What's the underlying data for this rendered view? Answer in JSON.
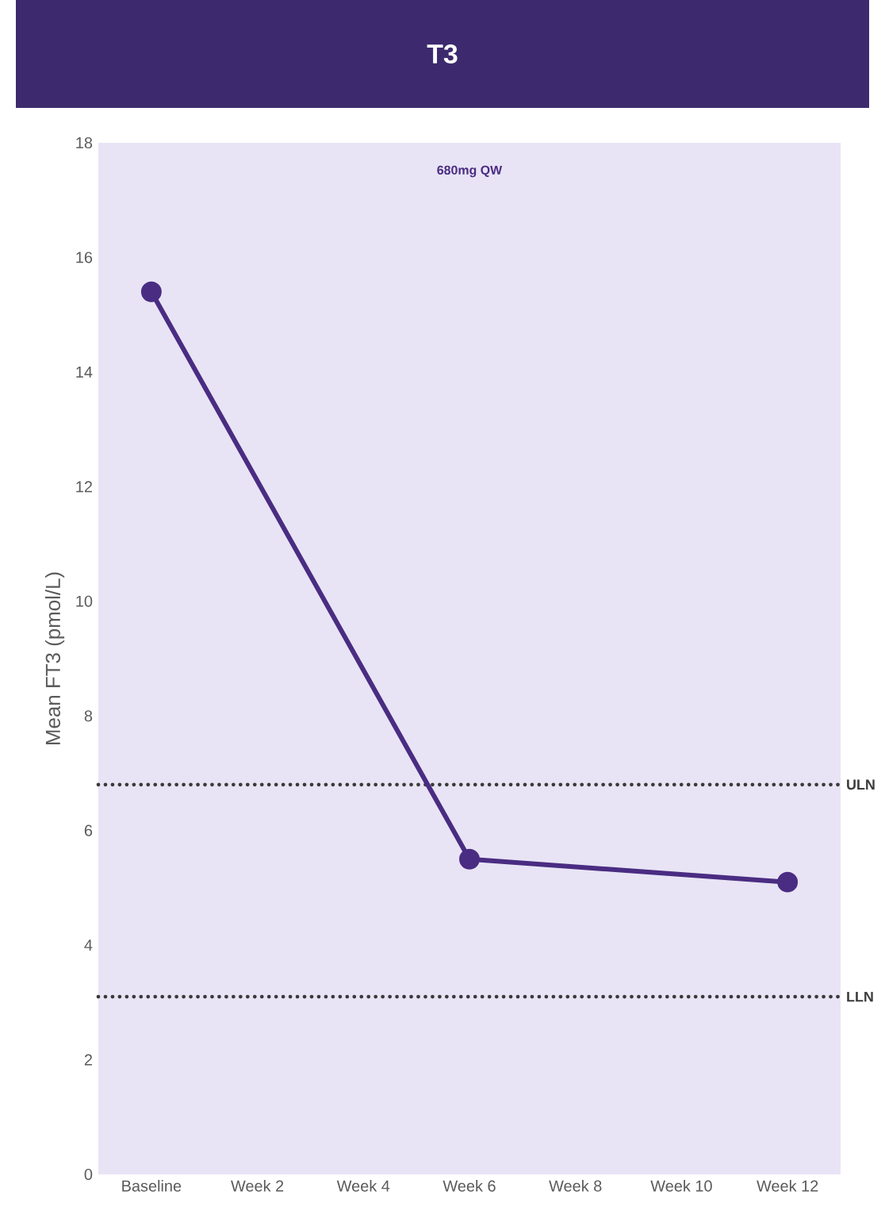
{
  "chart_data": {
    "type": "line",
    "title": "T3",
    "ylabel": "Mean FT3 (pmol/L)",
    "categories": [
      "Baseline",
      "Week 2",
      "Week 4",
      "Week 6",
      "Week 8",
      "Week 10",
      "Week 12"
    ],
    "series": [
      {
        "color": "#4a2c82",
        "values": [
          15.4,
          null,
          null,
          5.5,
          null,
          null,
          5.1
        ]
      }
    ],
    "ylim": [
      0,
      18
    ],
    "yticks": [
      0,
      2,
      4,
      6,
      8,
      10,
      12,
      14,
      16,
      18
    ],
    "marker": "circle",
    "line_style": "solid",
    "grid": false,
    "ref_lines": [
      {
        "axis": "y",
        "value": 6.8,
        "label": "ULN",
        "color": "#3a3a3a",
        "line_style": "dotted"
      },
      {
        "axis": "y",
        "value": 3.1,
        "label": "LLN",
        "color": "#3a3a3a",
        "line_style": "dotted"
      }
    ],
    "annotations": [
      "680mg QW"
    ]
  }
}
